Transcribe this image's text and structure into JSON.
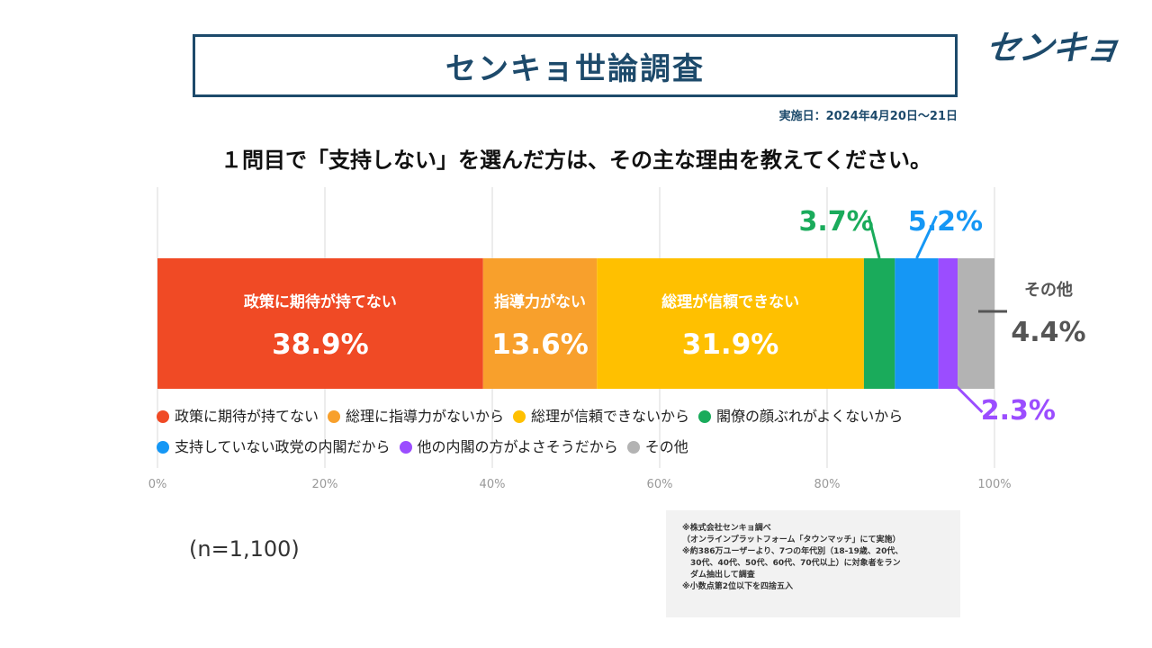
{
  "title": "センキョ世論調査",
  "logo_text": "センキョ",
  "date": "実施日：2024年4月20日～21日",
  "question": "１問目で「支持しない」を選んだ方は、その主な理由を教えてください。",
  "sample_size": "(n=1,100)",
  "notes": [
    "※株式会社センキョ調べ",
    "（オンラインプラットフォーム「タウンマッチ」にて実施）",
    "※約386万ユーザーより、7つの年代別（18-19歳、20代、",
    "　30代、40代、50代、60代、70代以上）に対象者をラン",
    "　ダム抽出して調査",
    "※小数点第2位以下を四捨五入"
  ],
  "chart_data": {
    "type": "bar",
    "orientation": "horizontal-stacked-100",
    "title": "１問目で「支持しない」を選んだ方は、その主な理由を教えてください。",
    "xlim": [
      0,
      100
    ],
    "x_ticks": [
      "0%",
      "20%",
      "40%",
      "60%",
      "80%",
      "100%"
    ],
    "grid": true,
    "legend_position": "bottom",
    "series": [
      {
        "name": "政策に期待が持てない",
        "legend": "政策に期待が持てない",
        "value": 38.9,
        "label": "38.9%",
        "color": "#f04a25",
        "in_bar_label": "政策に期待が持てない"
      },
      {
        "name": "総理に指導力がないから",
        "legend": "総理に指導力がないから",
        "value": 13.6,
        "label": "13.6%",
        "color": "#f8a02c",
        "in_bar_label": "指導力がない"
      },
      {
        "name": "総理が信頼できないから",
        "legend": "総理が信頼できないから",
        "value": 31.9,
        "label": "31.9%",
        "color": "#ffc000",
        "in_bar_label": "総理が信頼できない"
      },
      {
        "name": "閣僚の顔ぶれがよくないから",
        "legend": "閣僚の顔ぶれがよくないから",
        "value": 3.7,
        "label": "3.7%",
        "color": "#1aab5b",
        "callout": "top"
      },
      {
        "name": "支持していない政党の内閣だから",
        "legend": "支持していない政党の内閣だから",
        "value": 5.2,
        "label": "5.2%",
        "color": "#1597f5",
        "callout": "top"
      },
      {
        "name": "他の内閣の方がよさそうだから",
        "legend": "他の内閣の方がよさそうだから",
        "value": 2.3,
        "label": "2.3%",
        "color": "#9b4dff",
        "callout": "bottom"
      },
      {
        "name": "その他",
        "legend": "その他",
        "value": 4.4,
        "label": "4.4%",
        "color": "#b3b3b3",
        "callout": "right",
        "callout_title": "その他"
      }
    ]
  }
}
